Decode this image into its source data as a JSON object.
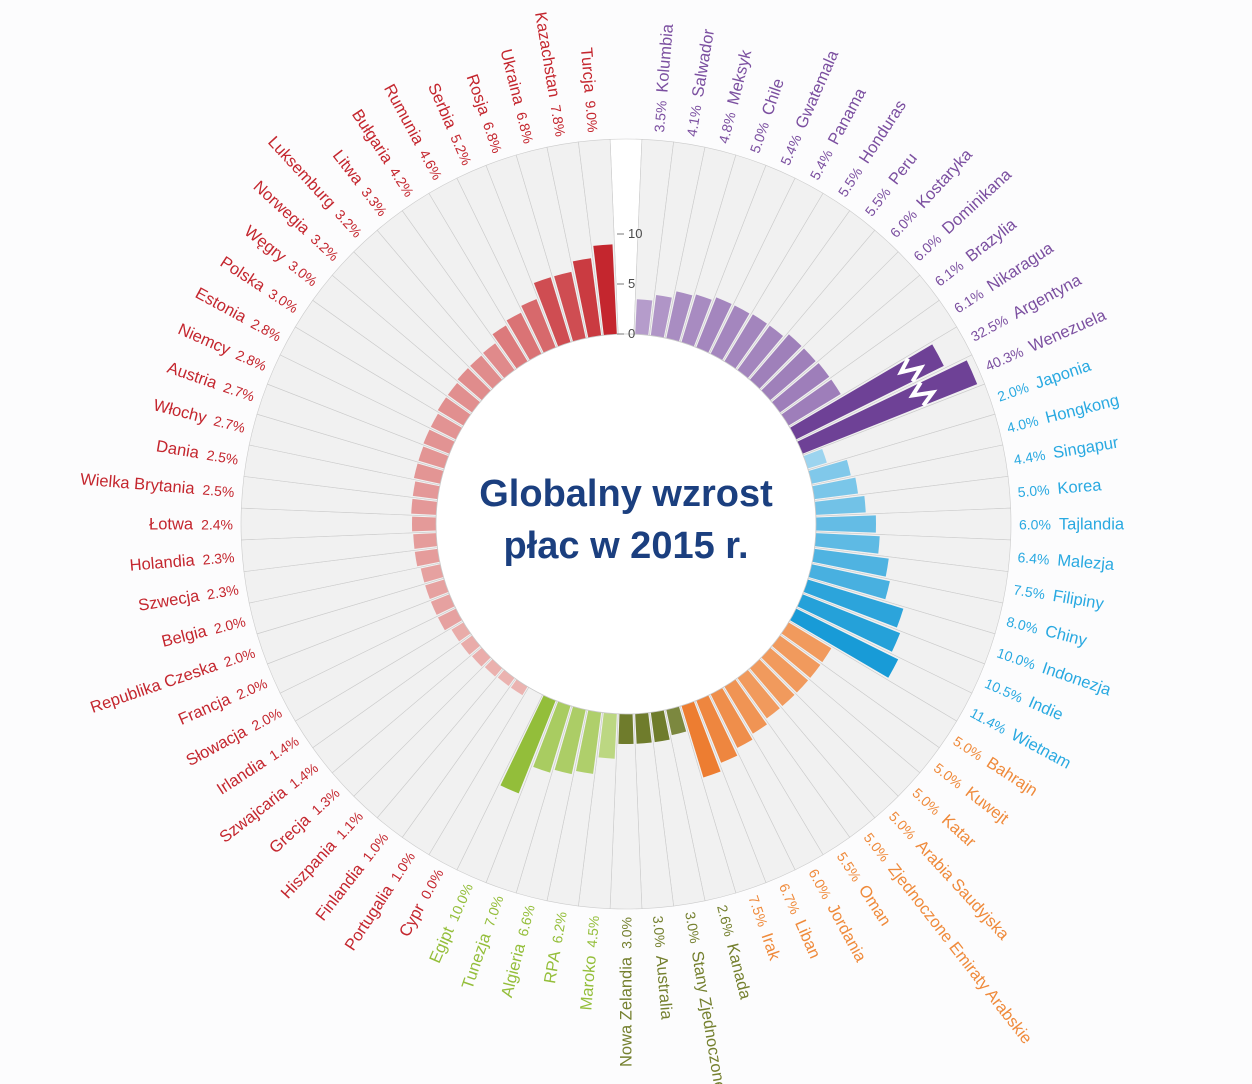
{
  "title": {
    "line1": "Globalny wzrost",
    "line2": "płac w 2015 r."
  },
  "axis": {
    "ticks": [
      "0",
      "5",
      "10"
    ],
    "tick_values": [
      0,
      5,
      10
    ]
  },
  "chart_data": {
    "type": "radial-bar",
    "title": "Globalny wzrost płac w 2015 r.",
    "unit": "%",
    "scale": {
      "min": 0,
      "max": 10,
      "ticks": [
        0,
        5,
        10
      ]
    },
    "ring_background": "#f1f1f1",
    "groups": [
      {
        "id": "latam",
        "bar_color": "#6E4196",
        "bar_light": "#E6DBEF",
        "label_color": "#7B4FA0",
        "color_vmax": 11.5
      },
      {
        "id": "asia",
        "bar_color": "#189BD7",
        "bar_light": "#D4EDF9",
        "label_color": "#29A9E1",
        "color_vmax": 11.4
      },
      {
        "id": "middle_east",
        "bar_color": "#ED7D31",
        "bar_light": "#FBE2CB",
        "label_color": "#EF8A3B",
        "color_vmax": 7.5
      },
      {
        "id": "na_oceania",
        "bar_color": "#6F7C2C",
        "bar_light": "#E4E7D0",
        "label_color": "#75802F",
        "color_vmax": 3.0
      },
      {
        "id": "africa",
        "bar_color": "#93BE3A",
        "bar_light": "#EAF3D3",
        "label_color": "#94BE3A",
        "color_vmax": 10.0
      },
      {
        "id": "europe",
        "bar_color": "#C4262E",
        "bar_light": "#F8E0DA",
        "label_color": "#C4262E",
        "color_vmax": 9.0
      }
    ],
    "countries": [
      {
        "name": "Kolumbia",
        "pct": "3.5%",
        "value": 3.5,
        "group": "latam"
      },
      {
        "name": "Salwador",
        "pct": "4.1%",
        "value": 4.1,
        "group": "latam"
      },
      {
        "name": "Meksyk",
        "pct": "4.8%",
        "value": 4.8,
        "group": "latam"
      },
      {
        "name": "Chile",
        "pct": "5.0%",
        "value": 5.0,
        "group": "latam"
      },
      {
        "name": "Gwatemala",
        "pct": "5.4%",
        "value": 5.4,
        "group": "latam"
      },
      {
        "name": "Panama",
        "pct": "5.4%",
        "value": 5.4,
        "group": "latam"
      },
      {
        "name": "Honduras",
        "pct": "5.5%",
        "value": 5.5,
        "group": "latam"
      },
      {
        "name": "Peru",
        "pct": "5.5%",
        "value": 5.5,
        "group": "latam"
      },
      {
        "name": "Kostaryka",
        "pct": "6.0%",
        "value": 6.0,
        "group": "latam"
      },
      {
        "name": "Dominikana",
        "pct": "6.0%",
        "value": 6.0,
        "group": "latam"
      },
      {
        "name": "Brazylia",
        "pct": "6.1%",
        "value": 6.1,
        "group": "latam"
      },
      {
        "name": "Nikaragua",
        "pct": "6.1%",
        "value": 6.1,
        "group": "latam"
      },
      {
        "name": "Argentyna",
        "pct": "32.5%",
        "value": 32.5,
        "group": "latam",
        "bar": 16.5,
        "break": true
      },
      {
        "name": "Wenezuela",
        "pct": "40.3%",
        "value": 40.3,
        "group": "latam",
        "bar": 18.8,
        "break": true
      },
      {
        "name": "Japonia",
        "pct": "2.0%",
        "value": 2.0,
        "group": "asia"
      },
      {
        "name": "Hongkong",
        "pct": "4.0%",
        "value": 4.0,
        "group": "asia"
      },
      {
        "name": "Singapur",
        "pct": "4.4%",
        "value": 4.4,
        "group": "asia"
      },
      {
        "name": "Korea",
        "pct": "5.0%",
        "value": 5.0,
        "group": "asia"
      },
      {
        "name": "Tajlandia",
        "pct": "6.0%",
        "value": 6.0,
        "group": "asia"
      },
      {
        "name": "Malezja",
        "pct": "6.4%",
        "value": 6.4,
        "group": "asia"
      },
      {
        "name": "Filipiny",
        "pct": "7.5%",
        "value": 7.5,
        "group": "asia"
      },
      {
        "name": "Chiny",
        "pct": "8.0%",
        "value": 8.0,
        "group": "asia"
      },
      {
        "name": "Indonezja",
        "pct": "10.0%",
        "value": 10.0,
        "group": "asia"
      },
      {
        "name": "Indie",
        "pct": "10.5%",
        "value": 10.5,
        "group": "asia"
      },
      {
        "name": "Wietnam",
        "pct": "11.4%",
        "value": 11.4,
        "group": "asia"
      },
      {
        "name": "Bahrajn",
        "pct": "5.0%",
        "value": 5.0,
        "group": "middle_east"
      },
      {
        "name": "Kuwejt",
        "pct": "5.0%",
        "value": 5.0,
        "group": "middle_east"
      },
      {
        "name": "Katar",
        "pct": "5.0%",
        "value": 5.0,
        "group": "middle_east"
      },
      {
        "name": "Arabia Saudyjska",
        "pct": "5.0%",
        "value": 5.0,
        "group": "middle_east"
      },
      {
        "name": "Zjednoczone Emiraty Arabskie",
        "pct": "5.0%",
        "value": 5.0,
        "group": "middle_east"
      },
      {
        "name": "Oman",
        "pct": "5.5%",
        "value": 5.5,
        "group": "middle_east"
      },
      {
        "name": "Jordania",
        "pct": "6.0%",
        "value": 6.0,
        "group": "middle_east"
      },
      {
        "name": "Liban",
        "pct": "6.7%",
        "value": 6.7,
        "group": "middle_east"
      },
      {
        "name": "Irak",
        "pct": "7.5%",
        "value": 7.5,
        "group": "middle_east"
      },
      {
        "name": "Kanada",
        "pct": "2.6%",
        "value": 2.6,
        "group": "na_oceania"
      },
      {
        "name": "Stany Zjednoczone",
        "pct": "3.0%",
        "value": 3.0,
        "group": "na_oceania"
      },
      {
        "name": "Australia",
        "pct": "3.0%",
        "value": 3.0,
        "group": "na_oceania"
      },
      {
        "name": "Nowa Zelandia",
        "pct": "3.0%",
        "value": 3.0,
        "group": "na_oceania"
      },
      {
        "name": "Maroko",
        "pct": "4.5%",
        "value": 4.5,
        "group": "africa"
      },
      {
        "name": "RPA",
        "pct": "6.2%",
        "value": 6.2,
        "group": "africa"
      },
      {
        "name": "Algieria",
        "pct": "6.6%",
        "value": 6.6,
        "group": "africa"
      },
      {
        "name": "Tunezja",
        "pct": "7.0%",
        "value": 7.0,
        "group": "africa"
      },
      {
        "name": "Egipt",
        "pct": "10.0%",
        "value": 10.0,
        "group": "africa"
      },
      {
        "name": "Cypr",
        "pct": "0.0%",
        "value": 0.0,
        "group": "europe"
      },
      {
        "name": "Portugalia",
        "pct": "1.0%",
        "value": 1.0,
        "group": "europe"
      },
      {
        "name": "Finlandia",
        "pct": "1.0%",
        "value": 1.0,
        "group": "europe"
      },
      {
        "name": "Hiszpania",
        "pct": "1.1%",
        "value": 1.1,
        "group": "europe"
      },
      {
        "name": "Grecja",
        "pct": "1.3%",
        "value": 1.3,
        "group": "europe"
      },
      {
        "name": "Szwajcaria",
        "pct": "1.4%",
        "value": 1.4,
        "group": "europe"
      },
      {
        "name": "Irlandia",
        "pct": "1.4%",
        "value": 1.4,
        "group": "europe"
      },
      {
        "name": "Słowacja",
        "pct": "2.0%",
        "value": 2.0,
        "group": "europe"
      },
      {
        "name": "Francja",
        "pct": "2.0%",
        "value": 2.0,
        "group": "europe"
      },
      {
        "name": "Republika Czeska",
        "pct": "2.0%",
        "value": 2.0,
        "group": "europe"
      },
      {
        "name": "Belgia",
        "pct": "2.0%",
        "value": 2.0,
        "group": "europe"
      },
      {
        "name": "Szwecja",
        "pct": "2.3%",
        "value": 2.3,
        "group": "europe"
      },
      {
        "name": "Holandia",
        "pct": "2.3%",
        "value": 2.3,
        "group": "europe"
      },
      {
        "name": "Łotwa",
        "pct": "2.4%",
        "value": 2.4,
        "group": "europe"
      },
      {
        "name": "Wielka Brytania",
        "pct": "2.5%",
        "value": 2.5,
        "group": "europe"
      },
      {
        "name": "Dania",
        "pct": "2.5%",
        "value": 2.5,
        "group": "europe"
      },
      {
        "name": "Włochy",
        "pct": "2.7%",
        "value": 2.7,
        "group": "europe"
      },
      {
        "name": "Austria",
        "pct": "2.7%",
        "value": 2.7,
        "group": "europe"
      },
      {
        "name": "Niemcy",
        "pct": "2.8%",
        "value": 2.8,
        "group": "europe"
      },
      {
        "name": "Estonia",
        "pct": "2.8%",
        "value": 2.8,
        "group": "europe"
      },
      {
        "name": "Polska",
        "pct": "3.0%",
        "value": 3.0,
        "group": "europe"
      },
      {
        "name": "Węgry",
        "pct": "3.0%",
        "value": 3.0,
        "group": "europe"
      },
      {
        "name": "Norwegia",
        "pct": "3.2%",
        "value": 3.2,
        "group": "europe"
      },
      {
        "name": "Luksemburg",
        "pct": "3.2%",
        "value": 3.2,
        "group": "europe"
      },
      {
        "name": "Litwa",
        "pct": "3.3%",
        "value": 3.3,
        "group": "europe"
      },
      {
        "name": "Bułgaria",
        "pct": "4.2%",
        "value": 4.2,
        "group": "europe"
      },
      {
        "name": "Rumunia",
        "pct": "4.6%",
        "value": 4.6,
        "group": "europe"
      },
      {
        "name": "Serbia",
        "pct": "5.2%",
        "value": 5.2,
        "group": "europe"
      },
      {
        "name": "Rosja",
        "pct": "6.8%",
        "value": 6.8,
        "group": "europe"
      },
      {
        "name": "Ukraina",
        "pct": "6.8%",
        "value": 6.8,
        "group": "europe"
      },
      {
        "name": "Kazachstan",
        "pct": "7.8%",
        "value": 7.8,
        "group": "europe"
      },
      {
        "name": "Turcja",
        "pct": "9.0%",
        "value": 9.0,
        "group": "europe"
      }
    ]
  }
}
